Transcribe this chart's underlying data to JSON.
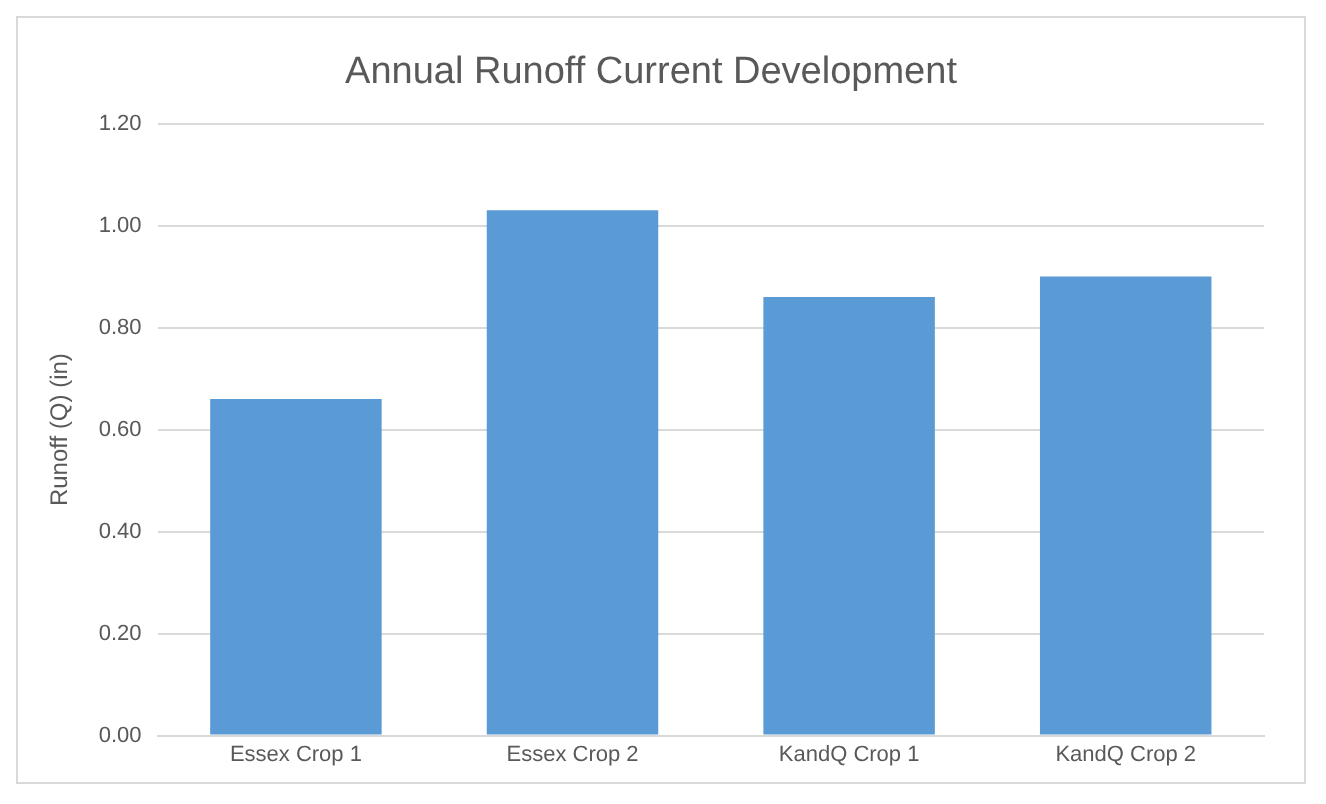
{
  "chart_data": {
    "type": "bar",
    "title": "Annual Runoff Current Development",
    "ylabel": "Runoff (Q) (in)",
    "categories": [
      "Essex Crop 1",
      "Essex Crop 2",
      "KandQ Crop 1",
      "KandQ Crop 2"
    ],
    "values": [
      0.66,
      1.03,
      0.86,
      0.9
    ],
    "color": "#5b9bd5",
    "ylim": [
      0,
      1.2
    ],
    "yticks": [
      {
        "value": 0,
        "label": "0.00"
      },
      {
        "value": 0.2,
        "label": "0.20"
      },
      {
        "value": 0.4,
        "label": "0.40"
      },
      {
        "value": 0.6,
        "label": "0.60"
      },
      {
        "value": 0.8,
        "label": "0.80"
      },
      {
        "value": 1.0,
        "label": "1.00"
      },
      {
        "value": 1.2,
        "label": "1.20"
      }
    ],
    "grid": "y",
    "legend": false
  }
}
